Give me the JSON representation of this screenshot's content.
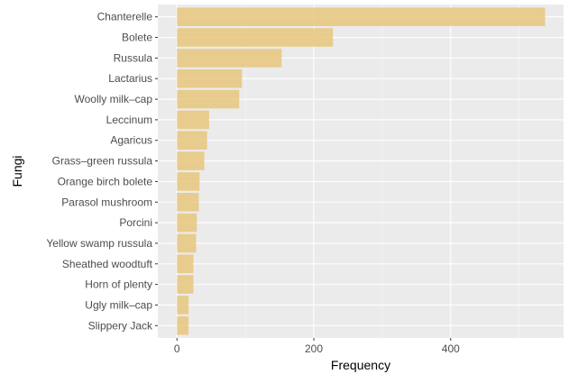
{
  "chart_data": {
    "type": "bar",
    "orientation": "horizontal",
    "xlabel": "Frequency",
    "ylabel": "Fungi",
    "xlim": [
      -28,
      565
    ],
    "x_ticks": [
      0,
      200,
      400
    ],
    "x_minor_ticks": [
      100,
      300,
      500
    ],
    "grid": true,
    "bar_color": "#e8c77e",
    "panel_background": "#ebebeb",
    "grid_color": "#ffffff",
    "categories": [
      "Chanterelle",
      "Bolete",
      "Russula",
      "Lactarius",
      "Woolly milk–cap",
      "Leccinum",
      "Agaricus",
      "Grass–green russula",
      "Orange birch bolete",
      "Parasol mushroom",
      "Porcini",
      "Yellow swamp russula",
      "Sheathed woodtuft",
      "Horn of plenty",
      "Ugly milk–cap",
      "Slippery Jack"
    ],
    "values": [
      538,
      228,
      153,
      95,
      91,
      47,
      44,
      40,
      33,
      32,
      29,
      28,
      24,
      24,
      17,
      17
    ]
  }
}
